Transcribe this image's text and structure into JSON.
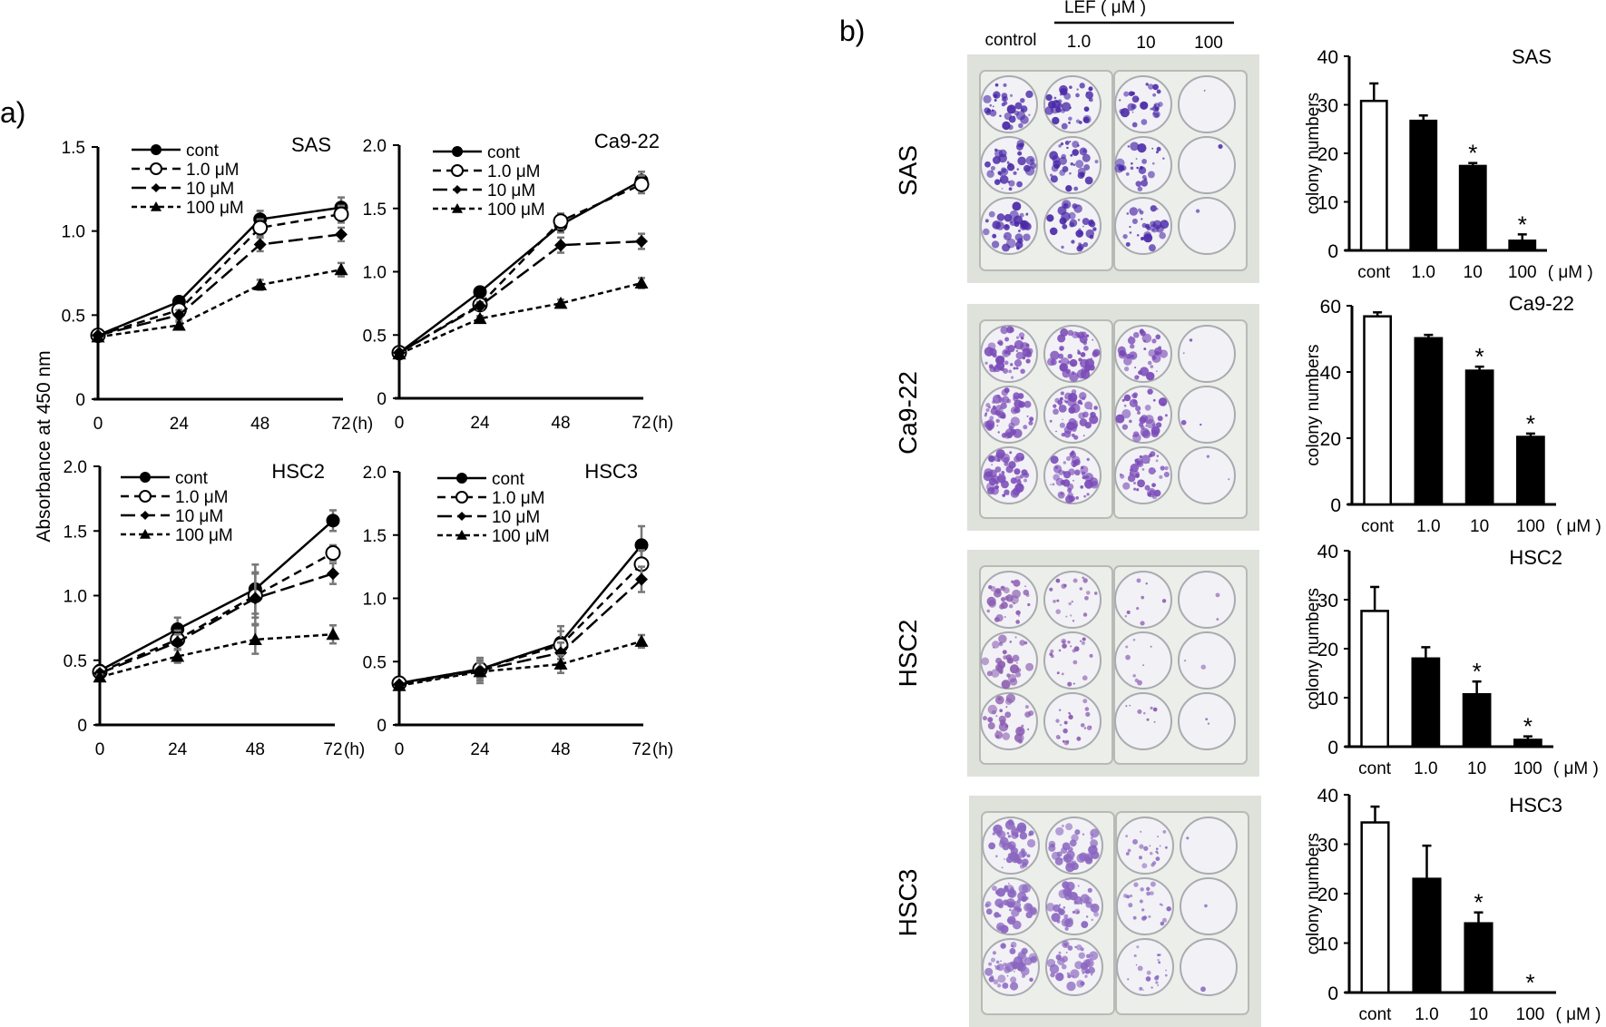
{
  "figure": {
    "panel_a_label": "a)",
    "panel_b_label": "b)",
    "a_ylabel": "Absorbance at 450 nm",
    "b_header": {
      "group_label": "LEF ( μM )",
      "columns": [
        "control",
        "1.0",
        "10",
        "100"
      ]
    },
    "b_row_labels": [
      "SAS",
      "Ca9-22",
      "HSC2",
      "HSC3"
    ]
  },
  "chart_data": [
    {
      "type": "line",
      "panel": "a",
      "title": "SAS",
      "xlabel": "(h)",
      "ylabel": "Absorbance at 450 nm",
      "x": [
        0,
        24,
        48,
        72
      ],
      "xticks": [
        "0",
        "24",
        "48",
        "72"
      ],
      "ylim": [
        0,
        1.5
      ],
      "yticks": [
        "0",
        "0.5",
        "1.0",
        "1.5"
      ],
      "legend": "top-left",
      "series": [
        {
          "name": "cont",
          "marker": "filled-circle",
          "line": "solid",
          "values": [
            0.38,
            0.58,
            1.07,
            1.14
          ],
          "err": [
            0.01,
            0.02,
            0.05,
            0.06
          ]
        },
        {
          "name": "1.0 μM",
          "marker": "open-circle",
          "line": "dashed",
          "values": [
            0.38,
            0.53,
            1.02,
            1.1
          ],
          "err": [
            0.01,
            0.03,
            0.05,
            0.05
          ]
        },
        {
          "name": "10 μM",
          "marker": "diamond",
          "line": "long-dash",
          "values": [
            0.38,
            0.5,
            0.92,
            0.98
          ],
          "err": [
            0.01,
            0.03,
            0.04,
            0.04
          ]
        },
        {
          "name": "100 μM",
          "marker": "triangle",
          "line": "short-dash",
          "values": [
            0.37,
            0.44,
            0.68,
            0.77
          ],
          "err": [
            0.01,
            0.02,
            0.03,
            0.04
          ]
        }
      ]
    },
    {
      "type": "line",
      "panel": "a",
      "title": "Ca9-22",
      "xlabel": "(h)",
      "ylabel": "Absorbance at 450 nm",
      "x": [
        0,
        24,
        48,
        72
      ],
      "xticks": [
        "0",
        "24",
        "48",
        "72"
      ],
      "ylim": [
        0,
        2.0
      ],
      "yticks": [
        "0",
        "0.5",
        "1.0",
        "1.5",
        "2.0"
      ],
      "legend": "top-left",
      "series": [
        {
          "name": "cont",
          "marker": "filled-circle",
          "line": "solid",
          "values": [
            0.36,
            0.84,
            1.37,
            1.72
          ],
          "err": [
            0.01,
            0.03,
            0.06,
            0.07
          ]
        },
        {
          "name": "1.0 μM",
          "marker": "open-circle",
          "line": "dashed",
          "values": [
            0.36,
            0.74,
            1.4,
            1.69
          ],
          "err": [
            0.01,
            0.03,
            0.06,
            0.07
          ]
        },
        {
          "name": "10 μM",
          "marker": "diamond",
          "line": "long-dash",
          "values": [
            0.36,
            0.73,
            1.21,
            1.24
          ],
          "err": [
            0.01,
            0.03,
            0.06,
            0.06
          ]
        },
        {
          "name": "100 μM",
          "marker": "triangle",
          "line": "short-dash",
          "values": [
            0.35,
            0.63,
            0.75,
            0.91
          ],
          "err": [
            0.01,
            0.02,
            0.03,
            0.04
          ]
        }
      ]
    },
    {
      "type": "line",
      "panel": "a",
      "title": "HSC2",
      "xlabel": "(h)",
      "ylabel": "Absorbance at 450 nm",
      "x": [
        0,
        24,
        48,
        72
      ],
      "xticks": [
        "0",
        "24",
        "48",
        "72"
      ],
      "ylim": [
        0,
        2.0
      ],
      "yticks": [
        "0",
        "0.5",
        "1.0",
        "1.5",
        "2.0"
      ],
      "legend": "top-left",
      "series": [
        {
          "name": "cont",
          "marker": "filled-circle",
          "line": "solid",
          "values": [
            0.42,
            0.74,
            1.05,
            1.58
          ],
          "err": [
            0.02,
            0.09,
            0.19,
            0.08
          ]
        },
        {
          "name": "1.0 μM",
          "marker": "open-circle",
          "line": "dashed",
          "values": [
            0.41,
            0.66,
            1.0,
            1.33
          ],
          "err": [
            0.02,
            0.07,
            0.17,
            0.06
          ]
        },
        {
          "name": "10 μM",
          "marker": "diamond",
          "line": "long-dash",
          "values": [
            0.4,
            0.64,
            0.98,
            1.17
          ],
          "err": [
            0.02,
            0.06,
            0.2,
            0.08
          ]
        },
        {
          "name": "100 μM",
          "marker": "triangle",
          "line": "short-dash",
          "values": [
            0.37,
            0.53,
            0.66,
            0.7
          ],
          "err": [
            0.02,
            0.05,
            0.11,
            0.07
          ]
        }
      ]
    },
    {
      "type": "line",
      "panel": "a",
      "title": "HSC3",
      "xlabel": "(h)",
      "ylabel": "Absorbance at 450 nm",
      "x": [
        0,
        24,
        48,
        72
      ],
      "xticks": [
        "0",
        "24",
        "48",
        "72"
      ],
      "ylim": [
        0,
        2.0
      ],
      "yticks": [
        "0",
        "0.5",
        "1.0",
        "1.5",
        "2.0"
      ],
      "legend": "top-left",
      "series": [
        {
          "name": "cont",
          "marker": "filled-circle",
          "line": "solid",
          "values": [
            0.33,
            0.44,
            0.65,
            1.42
          ],
          "err": [
            0.01,
            0.09,
            0.13,
            0.15
          ]
        },
        {
          "name": "1.0 μM",
          "marker": "open-circle",
          "line": "dashed",
          "values": [
            0.33,
            0.44,
            0.63,
            1.27
          ],
          "err": [
            0.01,
            0.07,
            0.11,
            0.11
          ]
        },
        {
          "name": "10 μM",
          "marker": "diamond",
          "line": "long-dash",
          "values": [
            0.32,
            0.43,
            0.57,
            1.15
          ],
          "err": [
            0.01,
            0.06,
            0.08,
            0.1
          ]
        },
        {
          "name": "100 μM",
          "marker": "triangle",
          "line": "short-dash",
          "values": [
            0.31,
            0.42,
            0.48,
            0.66
          ],
          "err": [
            0.01,
            0.09,
            0.07,
            0.05
          ]
        }
      ]
    },
    {
      "type": "bar",
      "panel": "b",
      "title": "SAS",
      "ylabel": "colony numbers",
      "categories": [
        "cont",
        "1.0",
        "10",
        "100"
      ],
      "unit_label": "( μM )",
      "values": [
        30.8,
        26.7,
        17.4,
        2.0
      ],
      "err": [
        3.6,
        1.1,
        0.6,
        1.3
      ],
      "significant": [
        false,
        false,
        true,
        true
      ],
      "ylim": [
        0,
        40
      ],
      "yticks": [
        "0",
        "10",
        "20",
        "30",
        "40"
      ]
    },
    {
      "type": "bar",
      "panel": "b",
      "title": "Ca9-22",
      "ylabel": "colony numbers",
      "categories": [
        "cont",
        "1.0",
        "10",
        "100"
      ],
      "unit_label": "( μM )",
      "values": [
        56.8,
        50.2,
        40.4,
        20.4
      ],
      "err": [
        1.2,
        1.0,
        1.2,
        1.0
      ],
      "significant": [
        false,
        false,
        true,
        true
      ],
      "ylim": [
        0,
        60
      ],
      "yticks": [
        "0",
        "20",
        "40",
        "60"
      ]
    },
    {
      "type": "bar",
      "panel": "b",
      "title": "HSC2",
      "ylabel": "colony numbers",
      "categories": [
        "cont",
        "1.0",
        "10",
        "100"
      ],
      "unit_label": "( μM )",
      "values": [
        27.7,
        18.0,
        10.7,
        1.4
      ],
      "err": [
        4.9,
        2.3,
        2.6,
        0.7
      ],
      "significant": [
        false,
        false,
        true,
        true
      ],
      "ylim": [
        0,
        40
      ],
      "yticks": [
        "0",
        "10",
        "20",
        "30",
        "40"
      ]
    },
    {
      "type": "bar",
      "panel": "b",
      "title": "HSC3",
      "ylabel": "colony numbers",
      "categories": [
        "cont",
        "1.0",
        "10",
        "100"
      ],
      "unit_label": "( μM )",
      "values": [
        34.4,
        23.0,
        14.0,
        0
      ],
      "err": [
        3.2,
        6.7,
        2.2,
        0
      ],
      "significant": [
        false,
        false,
        true,
        true
      ],
      "ylim": [
        0,
        40
      ],
      "yticks": [
        "0",
        "10",
        "20",
        "30",
        "40"
      ]
    }
  ],
  "plates": [
    {
      "cell_line": "SAS",
      "stain_color": "#4b2aa8",
      "density": [
        0.55,
        0.5,
        0.4,
        0.02
      ]
    },
    {
      "cell_line": "Ca9-22",
      "stain_color": "#7a4bb8",
      "density": [
        0.75,
        0.7,
        0.55,
        0.03
      ]
    },
    {
      "cell_line": "HSC2",
      "stain_color": "#8a5bb0",
      "density": [
        0.45,
        0.3,
        0.12,
        0.03
      ]
    },
    {
      "cell_line": "HSC3",
      "stain_color": "#8a66c0",
      "density": [
        0.7,
        0.55,
        0.3,
        0.02
      ]
    }
  ]
}
